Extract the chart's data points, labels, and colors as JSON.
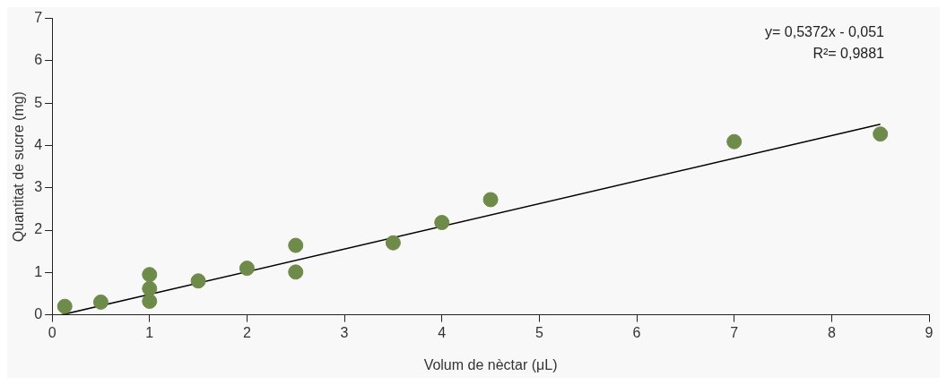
{
  "chart_data": {
    "type": "scatter",
    "xlabel": "Volum de nèctar (μL)",
    "ylabel": "Quantitat de sucre (mg)",
    "xlim": [
      0,
      9
    ],
    "xticks": [
      0,
      1,
      2,
      3,
      4,
      5,
      6,
      7,
      8,
      9
    ],
    "ylim": [
      0,
      7
    ],
    "yticks": [
      0,
      1,
      2,
      3,
      4,
      5,
      6,
      7
    ],
    "grid": false,
    "annotations": [
      "y= 0,5372x - 0,051",
      "R²= 0,9881"
    ],
    "series": [
      {
        "type": "scatter",
        "marker": "circle",
        "color": "#6e8b4a",
        "x": [
          0.13,
          0.5,
          1,
          1,
          1,
          1.5,
          2,
          2.5,
          2.5,
          3.5,
          4,
          4.5,
          7,
          8.5
        ],
        "values": [
          0.2,
          0.3,
          0.95,
          0.62,
          0.32,
          0.8,
          1.1,
          1.64,
          1.01,
          1.7,
          2.18,
          2.72,
          4.09,
          4.27
        ]
      },
      {
        "type": "line",
        "marker": "none",
        "color": "#000000",
        "x": [
          0.1,
          8.5
        ],
        "values": [
          0.0,
          4.5
        ]
      }
    ]
  }
}
